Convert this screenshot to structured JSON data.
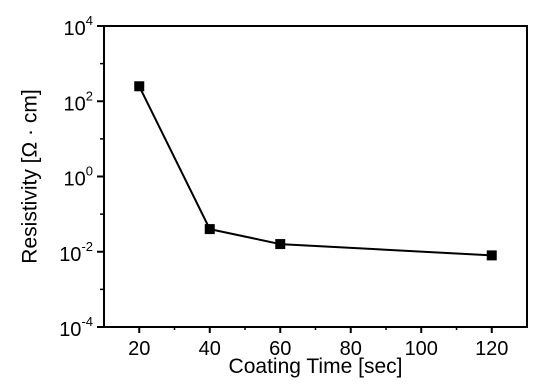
{
  "chart_data": {
    "type": "line",
    "title": "",
    "xlabel": "Coating Time [sec]",
    "ylabel": "Resistivity [Ω · cm]",
    "x": [
      20,
      40,
      60,
      120
    ],
    "series": [
      {
        "values": [
          250,
          0.04,
          0.016,
          0.008
        ],
        "color": "#000000",
        "marker": "square"
      }
    ],
    "xlim": [
      10,
      130
    ],
    "ylim": [
      0.0001,
      10000
    ],
    "yscale": "log",
    "x_ticks": [
      {
        "value": 20,
        "label": "20"
      },
      {
        "value": 40,
        "label": "40"
      },
      {
        "value": 60,
        "label": "60"
      },
      {
        "value": 80,
        "label": "80"
      },
      {
        "value": 100,
        "label": "100"
      },
      {
        "value": 120,
        "label": "120"
      }
    ],
    "y_ticks": [
      {
        "value": 10000,
        "base": "10",
        "exp": "4"
      },
      {
        "value": 100,
        "base": "10",
        "exp": "2"
      },
      {
        "value": 1,
        "base": "10",
        "exp": "0"
      },
      {
        "value": 0.01,
        "base": "10",
        "exp": "-2"
      },
      {
        "value": 0.0001,
        "base": "10",
        "exp": "-4"
      }
    ],
    "grid": false,
    "legend": "none"
  }
}
